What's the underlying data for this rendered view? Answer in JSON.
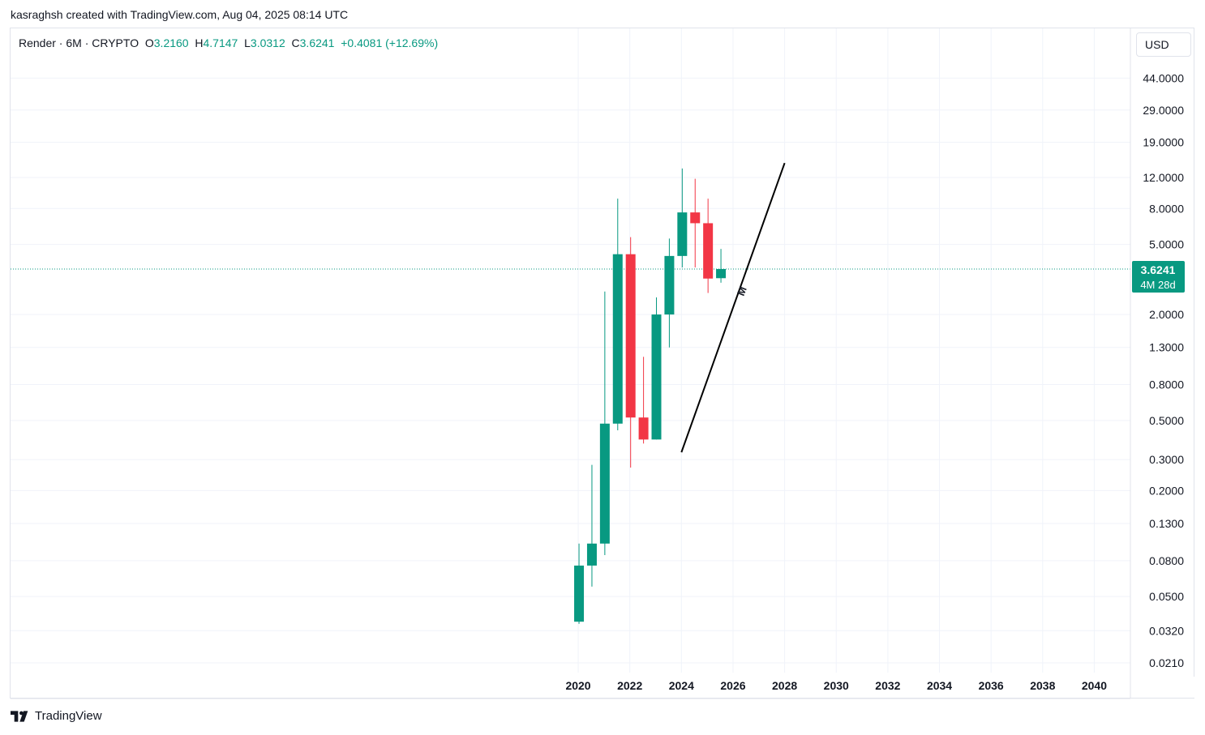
{
  "header": {
    "attribution": "kasraghsh created with TradingView.com, Aug 04, 2025 08:14 UTC"
  },
  "legend": {
    "symbol": "Render · 6M · CRYPTO",
    "o_label": "O",
    "o_value": "3.2160",
    "h_label": "H",
    "h_value": "4.7147",
    "l_label": "L",
    "l_value": "3.0312",
    "c_label": "C",
    "c_value": "3.6241",
    "change": "+0.4081 (+12.69%)"
  },
  "currency_button": "USD",
  "price_label": {
    "price": "3.6241",
    "countdown": "4M 28d"
  },
  "annotation": {
    "text": "M"
  },
  "footer": {
    "brand": "TradingView"
  },
  "colors": {
    "up": "#089981",
    "down": "#f23645",
    "grid": "#f0f3fa",
    "axis_text": "#131722",
    "trendline": "#000000"
  },
  "chart_data": {
    "type": "candlestick",
    "scale": "log",
    "title": "",
    "xlabel": "",
    "ylabel": "",
    "grid": true,
    "y_ticks": [
      "44.0000",
      "29.0000",
      "19.0000",
      "12.0000",
      "8.0000",
      "5.0000",
      "2.0000",
      "1.3000",
      "0.8000",
      "0.5000",
      "0.3000",
      "0.2000",
      "0.1300",
      "0.0800",
      "0.0500",
      "0.0320",
      "0.0210"
    ],
    "x_ticks": [
      "2020",
      "2022",
      "2024",
      "2026",
      "2028",
      "2030",
      "2032",
      "2034",
      "2036",
      "2038",
      "2040"
    ],
    "x_range": [
      1998,
      2041.4
    ],
    "y_range": [
      0.0185,
      57
    ],
    "current_price": 3.6241,
    "candles": [
      {
        "t": 2020.0,
        "open": 0.036,
        "high": 0.1,
        "low": 0.035,
        "close": 0.075
      },
      {
        "t": 2020.5,
        "open": 0.075,
        "high": 0.28,
        "low": 0.057,
        "close": 0.1
      },
      {
        "t": 2021.0,
        "open": 0.1,
        "high": 2.7,
        "low": 0.086,
        "close": 0.48
      },
      {
        "t": 2021.5,
        "open": 0.48,
        "high": 9.1,
        "low": 0.44,
        "close": 4.4
      },
      {
        "t": 2022.0,
        "open": 4.4,
        "high": 5.5,
        "low": 0.27,
        "close": 0.52
      },
      {
        "t": 2022.5,
        "open": 0.52,
        "high": 1.15,
        "low": 0.37,
        "close": 0.39
      },
      {
        "t": 2023.0,
        "open": 0.39,
        "high": 2.5,
        "low": 0.39,
        "close": 2.0
      },
      {
        "t": 2023.5,
        "open": 2.0,
        "high": 5.4,
        "low": 1.3,
        "close": 4.3
      },
      {
        "t": 2024.0,
        "open": 4.3,
        "high": 13.5,
        "low": 3.7,
        "close": 7.6
      },
      {
        "t": 2024.5,
        "open": 7.6,
        "high": 11.8,
        "low": 3.7,
        "close": 6.6
      },
      {
        "t": 2025.0,
        "open": 6.6,
        "high": 9.1,
        "low": 2.65,
        "close": 3.2
      },
      {
        "t": 2025.5,
        "open": 3.216,
        "high": 4.7147,
        "low": 3.0312,
        "close": 3.6241
      }
    ],
    "trendline": {
      "x1": 2024.0,
      "y1": 0.33,
      "x2": 2028.0,
      "y2": 14.5
    }
  }
}
